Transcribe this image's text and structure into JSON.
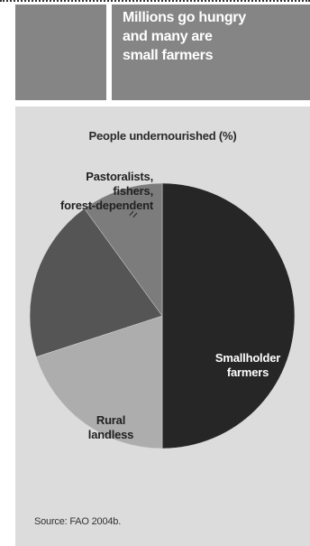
{
  "header": {
    "title": "Millions go hungry\nand many are\nsmall farmers"
  },
  "source": "Source: FAO 2004b.",
  "chart_data": {
    "type": "pie",
    "title": "People undernourished (%)",
    "slices": [
      {
        "label": "Smallholder\nfarmers",
        "value": 50,
        "color": "#262626"
      },
      {
        "label": "Rural\nlandless",
        "value": 20,
        "color": "#adadad"
      },
      {
        "label": "",
        "value": 20,
        "color": "#555555"
      },
      {
        "label": "Pastoralists,\nfishers,\nforest-dependent",
        "value": 10,
        "color": "#7c7c7c"
      }
    ],
    "legend": "none"
  }
}
